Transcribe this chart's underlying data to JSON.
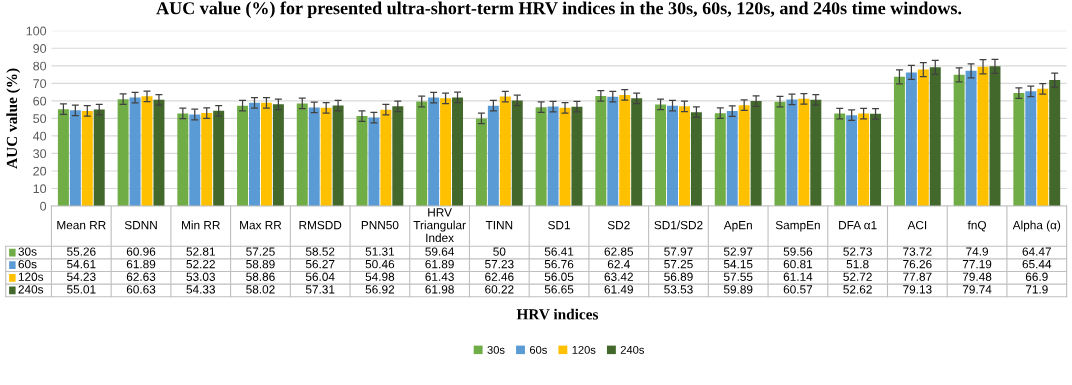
{
  "chart_data": {
    "type": "bar",
    "title": "AUC value (%) for presented ultra-short-term HRV indices in the 30s, 60s, 120s, and 240s time windows.",
    "xlabel": "HRV indices",
    "ylabel": "AUC value (%)",
    "categories": [
      "Mean RR",
      "SDNN",
      "Min RR",
      "Max RR",
      "RMSDD",
      "PNN50",
      "HRV Triangular Index",
      "TINN",
      "SD1",
      "SD2",
      "SD1/SD2",
      "ApEn",
      "SampEn",
      "DFA α1",
      "ACI",
      "fnQ",
      "Alpha (α)"
    ],
    "series": [
      {
        "name": "30s",
        "color": "#70ad47",
        "values": [
          55.26,
          60.96,
          52.81,
          57.25,
          58.52,
          51.31,
          59.64,
          50,
          56.41,
          62.85,
          57.97,
          52.97,
          59.56,
          52.73,
          73.72,
          74.9,
          64.47
        ],
        "errors": [
          3,
          3,
          3,
          3,
          3,
          3,
          3,
          3,
          3,
          3,
          3,
          3,
          3,
          3,
          4,
          4,
          3
        ]
      },
      {
        "name": "60s",
        "color": "#5b9bd5",
        "values": [
          54.61,
          61.89,
          52.22,
          58.89,
          56.27,
          50.46,
          61.89,
          57.23,
          56.76,
          62.4,
          57.25,
          54.15,
          60.81,
          51.8,
          76.26,
          77.19,
          65.44
        ],
        "errors": [
          3,
          3,
          3,
          3,
          3,
          3,
          3,
          3,
          3,
          3,
          3,
          3,
          3,
          3,
          4,
          4,
          3
        ]
      },
      {
        "name": "120s",
        "color": "#ffc000",
        "values": [
          54.23,
          62.63,
          53.03,
          58.86,
          56.04,
          54.98,
          61.43,
          62.46,
          56.05,
          63.42,
          56.89,
          57.55,
          61.14,
          52.72,
          77.87,
          79.48,
          66.9
        ],
        "errors": [
          3,
          3,
          3,
          3,
          3,
          3,
          3,
          3,
          3,
          3,
          3,
          3,
          3,
          3,
          4,
          4,
          3
        ]
      },
      {
        "name": "240s",
        "color": "#43682b",
        "values": [
          55.01,
          60.63,
          54.33,
          58.02,
          57.31,
          56.92,
          61.98,
          60.22,
          56.65,
          61.49,
          53.53,
          59.89,
          60.57,
          52.62,
          79.13,
          79.74,
          71.9
        ],
        "errors": [
          3,
          3,
          3,
          3,
          3,
          3,
          3,
          3,
          3,
          3,
          3,
          3,
          3,
          3,
          4,
          4,
          4
        ]
      }
    ],
    "ylim": [
      0,
      100
    ],
    "yticks": [
      0,
      10,
      20,
      30,
      40,
      50,
      60,
      70,
      80,
      90,
      100
    ],
    "grid": "y",
    "legend": "bottom",
    "data_labels": true
  }
}
